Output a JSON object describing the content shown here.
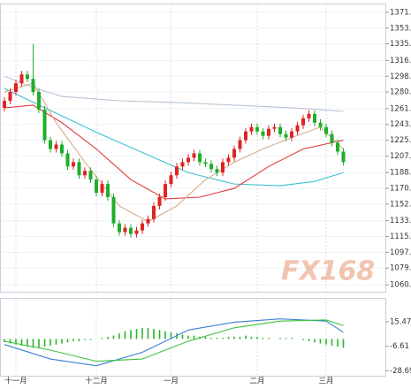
{
  "chart_data": [
    {
      "type": "candlestick",
      "watermark": "FX168",
      "categories": [
        null,
        null,
        "十一月",
        null,
        null,
        null,
        null,
        null,
        null,
        null,
        null,
        null,
        null,
        null,
        null,
        null,
        "十二月",
        null,
        null,
        null,
        null,
        null,
        null,
        null,
        null,
        null,
        null,
        null,
        null,
        "一月",
        null,
        null,
        null,
        null,
        null,
        null,
        null,
        null,
        null,
        null,
        null,
        null,
        null,
        null,
        "二月",
        null,
        null,
        null,
        null,
        null,
        null,
        null,
        null,
        null,
        null,
        null,
        "三月",
        null,
        null,
        null
      ],
      "open": [
        1262,
        1270,
        1280,
        1290,
        1300,
        1295,
        1280,
        1260,
        1225,
        1215,
        1220,
        1210,
        1195,
        1200,
        1185,
        1190,
        1180,
        1165,
        1175,
        1160,
        1130,
        1120,
        1125,
        1118,
        1122,
        1130,
        1135,
        1150,
        1160,
        1175,
        1185,
        1195,
        1200,
        1205,
        1210,
        1200,
        1198,
        1192,
        1188,
        1200,
        1205,
        1215,
        1225,
        1235,
        1240,
        1235,
        1230,
        1238,
        1240,
        1232,
        1228,
        1235,
        1242,
        1250,
        1255,
        1245,
        1240,
        1232,
        1222,
        1212
      ],
      "close": [
        1270,
        1280,
        1290,
        1300,
        1295,
        1280,
        1260,
        1225,
        1215,
        1220,
        1210,
        1195,
        1200,
        1185,
        1190,
        1180,
        1165,
        1175,
        1160,
        1130,
        1120,
        1125,
        1118,
        1122,
        1130,
        1135,
        1150,
        1160,
        1175,
        1185,
        1195,
        1200,
        1205,
        1210,
        1200,
        1198,
        1192,
        1188,
        1200,
        1205,
        1215,
        1225,
        1235,
        1240,
        1235,
        1230,
        1238,
        1240,
        1232,
        1228,
        1235,
        1242,
        1250,
        1255,
        1245,
        1240,
        1232,
        1222,
        1212,
        1200
      ],
      "high": [
        1274,
        1284,
        1294,
        1304,
        1304,
        1335,
        1284,
        1264,
        1229,
        1224,
        1224,
        1214,
        1204,
        1204,
        1194,
        1194,
        1184,
        1179,
        1179,
        1164,
        1134,
        1129,
        1129,
        1126,
        1134,
        1139,
        1154,
        1164,
        1179,
        1189,
        1199,
        1204,
        1209,
        1214,
        1214,
        1204,
        1202,
        1196,
        1204,
        1209,
        1219,
        1229,
        1239,
        1244,
        1244,
        1239,
        1242,
        1244,
        1244,
        1236,
        1239,
        1246,
        1254,
        1259,
        1259,
        1249,
        1244,
        1236,
        1226,
        1216
      ],
      "low": [
        1258,
        1266,
        1276,
        1286,
        1291,
        1276,
        1256,
        1221,
        1211,
        1211,
        1206,
        1191,
        1191,
        1181,
        1181,
        1176,
        1161,
        1161,
        1156,
        1126,
        1116,
        1116,
        1114,
        1114,
        1118,
        1126,
        1131,
        1146,
        1156,
        1171,
        1181,
        1191,
        1196,
        1201,
        1196,
        1194,
        1188,
        1184,
        1184,
        1196,
        1201,
        1211,
        1221,
        1231,
        1231,
        1226,
        1226,
        1234,
        1228,
        1224,
        1224,
        1231,
        1238,
        1246,
        1241,
        1236,
        1228,
        1218,
        1208,
        1196
      ],
      "up_color": "#e02222",
      "down_color": "#1fae2a",
      "lines": [
        {
          "color": "#b6c4d2",
          "x": [
            0,
            5,
            10,
            20,
            30,
            40,
            50,
            59
          ],
          "values": [
            1298,
            1285,
            1275,
            1270,
            1268,
            1265,
            1262,
            1258
          ]
        },
        {
          "color": "#3cc0d0",
          "x": [
            0,
            8,
            16,
            24,
            32,
            40,
            48,
            54,
            59
          ],
          "values": [
            1284,
            1259,
            1234,
            1211,
            1188,
            1175,
            1173,
            1178,
            1188
          ]
        },
        {
          "color": "#e03a3a",
          "x": [
            0,
            5,
            10,
            16,
            22,
            28,
            34,
            40,
            46,
            52,
            59
          ],
          "values": [
            1262,
            1265,
            1245,
            1215,
            1180,
            1158,
            1160,
            1170,
            1195,
            1215,
            1225
          ]
        },
        {
          "color": "#d6ad8a",
          "x": [
            0,
            5,
            9,
            14,
            20,
            25,
            30,
            35,
            40,
            45,
            50,
            55,
            59
          ],
          "values": [
            1280,
            1290,
            1245,
            1200,
            1150,
            1132,
            1150,
            1180,
            1200,
            1215,
            1228,
            1240,
            1215
          ]
        }
      ],
      "ylim": [
        1052,
        1380
      ],
      "yticks": [
        {
          "value": 1371,
          "label": "1371."
        },
        {
          "value": 1353,
          "label": "1353."
        },
        {
          "value": 1335,
          "label": "1335."
        },
        {
          "value": 1316,
          "label": "1316."
        },
        {
          "value": 1298,
          "label": "1298."
        },
        {
          "value": 1280,
          "label": "1280."
        },
        {
          "value": 1261,
          "label": "1261."
        },
        {
          "value": 1243,
          "label": "1243."
        },
        {
          "value": 1225,
          "label": "1225."
        },
        {
          "value": 1207,
          "label": "1207."
        },
        {
          "value": 1188,
          "label": "1188."
        },
        {
          "value": 1170,
          "label": "1170."
        },
        {
          "value": 1152,
          "label": "1152."
        },
        {
          "value": 1133,
          "label": "1133."
        },
        {
          "value": 1115,
          "label": "1115."
        },
        {
          "value": 1097,
          "label": "1097."
        },
        {
          "value": 1079,
          "label": "1079."
        },
        {
          "value": 1060,
          "label": "1060."
        }
      ],
      "grid": true
    },
    {
      "type": "macd",
      "histogram": [
        -3,
        -4,
        -5,
        -6,
        -7,
        -8,
        -8,
        -7,
        -6,
        -5,
        -4,
        -3,
        -2,
        -2,
        -1,
        -1,
        0,
        1,
        2,
        3,
        5,
        7,
        8,
        9,
        10,
        10,
        9,
        8,
        7,
        6,
        5,
        4,
        3,
        3,
        2,
        2,
        1,
        1,
        1,
        2,
        2,
        2,
        3,
        2,
        2,
        1,
        1,
        0,
        1,
        1,
        1,
        0,
        -1,
        -2,
        -3,
        -4,
        -5,
        -6,
        -7,
        -8
      ],
      "histogram_color": "#2db52d",
      "series": [
        {
          "color": "#3a7fd0",
          "x": [
            0,
            8,
            16,
            24,
            32,
            40,
            48,
            56,
            59
          ],
          "values": [
            -5,
            -18,
            -24,
            -12,
            8,
            15,
            18,
            16,
            6
          ]
        },
        {
          "color": "#3cc23c",
          "x": [
            0,
            8,
            16,
            24,
            32,
            40,
            48,
            56,
            59
          ],
          "values": [
            -2,
            -10,
            -20,
            -18,
            -2,
            10,
            16,
            17,
            12
          ]
        }
      ],
      "ylim": [
        -33,
        36
      ],
      "yticks": [
        15.47,
        -6.61,
        -28.69
      ]
    }
  ]
}
